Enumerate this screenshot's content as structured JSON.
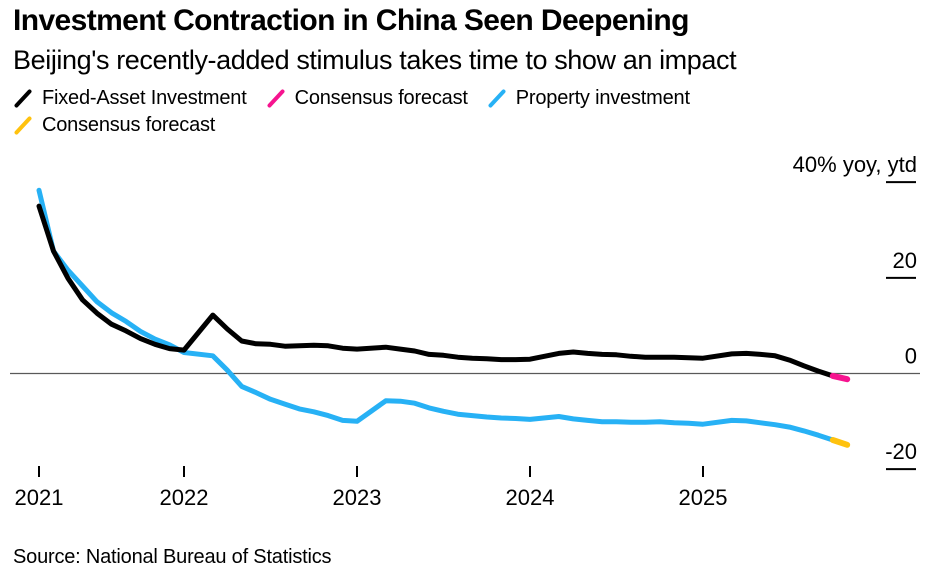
{
  "header": {
    "title": "Investment Contraction in China Seen Deepening",
    "subtitle": "Beijing's recently-added stimulus takes time to show an impact"
  },
  "legend": {
    "items": [
      {
        "label": "Fixed-Asset Investment",
        "color": "#000000"
      },
      {
        "label": "Consensus forecast",
        "color": "#f6148f"
      },
      {
        "label": "Property investment",
        "color": "#27b1f5"
      },
      {
        "label": "Consensus forecast",
        "color": "#ffc20e"
      }
    ]
  },
  "source": {
    "text": "Source: National Bureau of Statistics"
  },
  "chart_data": {
    "type": "line",
    "title": "Investment Contraction in China Seen Deepening",
    "unit_label": "% yoy, ytd",
    "ylim": [
      -25,
      42
    ],
    "grid": "zero-line-only",
    "legend_position": "top-left",
    "y_ticks": [
      {
        "value": 40,
        "label": "40% yoy, ytd",
        "dash": true
      },
      {
        "value": 20,
        "label": "20",
        "dash": true
      },
      {
        "value": 0,
        "label": "0",
        "dash": false
      },
      {
        "value": -20,
        "label": "-20",
        "dash": true
      }
    ],
    "x_ticks": [
      {
        "label": "2021",
        "t": 2021.1667
      },
      {
        "label": "2022",
        "t": 2022
      },
      {
        "label": "2023",
        "t": 2023
      },
      {
        "label": "2024",
        "t": 2024
      },
      {
        "label": "2025",
        "t": 2025
      }
    ],
    "series": [
      {
        "name": "Property investment",
        "role": "actual",
        "color": "#27b1f5",
        "stroke_width": 5,
        "points": [
          [
            2021.1667,
            38.3
          ],
          [
            2021.25,
            25.6
          ],
          [
            2021.3333,
            21.6
          ],
          [
            2021.4167,
            18.3
          ],
          [
            2021.5,
            15.0
          ],
          [
            2021.5833,
            12.7
          ],
          [
            2021.6667,
            10.9
          ],
          [
            2021.75,
            8.8
          ],
          [
            2021.8333,
            7.2
          ],
          [
            2021.9167,
            6.0
          ],
          [
            2022.0,
            4.4
          ],
          [
            2022.1667,
            3.7
          ],
          [
            2022.25,
            0.7
          ],
          [
            2022.3333,
            -2.7
          ],
          [
            2022.4167,
            -4.0
          ],
          [
            2022.5,
            -5.4
          ],
          [
            2022.5833,
            -6.4
          ],
          [
            2022.6667,
            -7.4
          ],
          [
            2022.75,
            -8.0
          ],
          [
            2022.8333,
            -8.8
          ],
          [
            2022.9167,
            -9.8
          ],
          [
            2023.0,
            -10.0
          ],
          [
            2023.1667,
            -5.7
          ],
          [
            2023.25,
            -5.8
          ],
          [
            2023.3333,
            -6.2
          ],
          [
            2023.4167,
            -7.2
          ],
          [
            2023.5,
            -7.9
          ],
          [
            2023.5833,
            -8.5
          ],
          [
            2023.6667,
            -8.8
          ],
          [
            2023.75,
            -9.1
          ],
          [
            2023.8333,
            -9.3
          ],
          [
            2023.9167,
            -9.4
          ],
          [
            2024.0,
            -9.6
          ],
          [
            2024.1667,
            -9.0
          ],
          [
            2024.25,
            -9.5
          ],
          [
            2024.3333,
            -9.8
          ],
          [
            2024.4167,
            -10.1
          ],
          [
            2024.5,
            -10.1
          ],
          [
            2024.5833,
            -10.2
          ],
          [
            2024.6667,
            -10.2
          ],
          [
            2024.75,
            -10.1
          ],
          [
            2024.8333,
            -10.3
          ],
          [
            2024.9167,
            -10.4
          ],
          [
            2025.0,
            -10.6
          ],
          [
            2025.1667,
            -9.8
          ],
          [
            2025.25,
            -9.9
          ],
          [
            2025.3333,
            -10.3
          ],
          [
            2025.4167,
            -10.7
          ],
          [
            2025.5,
            -11.2
          ],
          [
            2025.5833,
            -12.0
          ],
          [
            2025.6667,
            -12.9
          ],
          [
            2025.75,
            -13.9
          ]
        ]
      },
      {
        "name": "Consensus forecast (property investment)",
        "role": "forecast",
        "color": "#ffc20e",
        "stroke_width": 6,
        "points": [
          [
            2025.75,
            -13.9
          ],
          [
            2025.8333,
            -14.9
          ]
        ]
      },
      {
        "name": "Fixed-Asset Investment",
        "role": "actual",
        "color": "#000000",
        "stroke_width": 5,
        "points": [
          [
            2021.1667,
            35.0
          ],
          [
            2021.25,
            25.6
          ],
          [
            2021.3333,
            19.9
          ],
          [
            2021.4167,
            15.4
          ],
          [
            2021.5,
            12.6
          ],
          [
            2021.5833,
            10.3
          ],
          [
            2021.6667,
            8.9
          ],
          [
            2021.75,
            7.3
          ],
          [
            2021.8333,
            6.1
          ],
          [
            2021.9167,
            5.2
          ],
          [
            2022.0,
            4.9
          ],
          [
            2022.1667,
            12.2
          ],
          [
            2022.25,
            9.3
          ],
          [
            2022.3333,
            6.8
          ],
          [
            2022.4167,
            6.2
          ],
          [
            2022.5,
            6.1
          ],
          [
            2022.5833,
            5.7
          ],
          [
            2022.6667,
            5.8
          ],
          [
            2022.75,
            5.9
          ],
          [
            2022.8333,
            5.8
          ],
          [
            2022.9167,
            5.3
          ],
          [
            2023.0,
            5.1
          ],
          [
            2023.1667,
            5.5
          ],
          [
            2023.25,
            5.1
          ],
          [
            2023.3333,
            4.7
          ],
          [
            2023.4167,
            4.0
          ],
          [
            2023.5,
            3.8
          ],
          [
            2023.5833,
            3.4
          ],
          [
            2023.6667,
            3.2
          ],
          [
            2023.75,
            3.1
          ],
          [
            2023.8333,
            2.9
          ],
          [
            2023.9167,
            2.9
          ],
          [
            2024.0,
            3.0
          ],
          [
            2024.1667,
            4.2
          ],
          [
            2024.25,
            4.5
          ],
          [
            2024.3333,
            4.2
          ],
          [
            2024.4167,
            4.0
          ],
          [
            2024.5,
            3.9
          ],
          [
            2024.5833,
            3.6
          ],
          [
            2024.6667,
            3.4
          ],
          [
            2024.75,
            3.4
          ],
          [
            2024.8333,
            3.4
          ],
          [
            2024.9167,
            3.3
          ],
          [
            2025.0,
            3.2
          ],
          [
            2025.1667,
            4.1
          ],
          [
            2025.25,
            4.2
          ],
          [
            2025.3333,
            4.0
          ],
          [
            2025.4167,
            3.7
          ],
          [
            2025.5,
            2.8
          ],
          [
            2025.5833,
            1.6
          ],
          [
            2025.6667,
            0.5
          ],
          [
            2025.75,
            -0.5
          ]
        ]
      },
      {
        "name": "Consensus forecast (fixed-asset investment)",
        "role": "forecast",
        "color": "#f6148f",
        "stroke_width": 6,
        "points": [
          [
            2025.75,
            -0.5
          ],
          [
            2025.8333,
            -1.2
          ]
        ]
      }
    ]
  }
}
